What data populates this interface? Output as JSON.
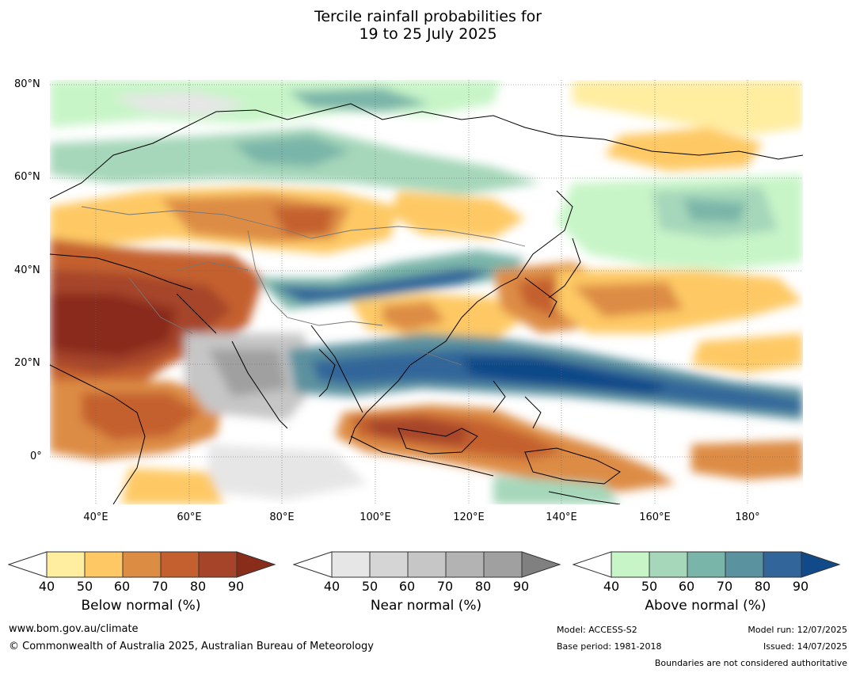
{
  "title": {
    "line1": "Tercile rainfall probabilities for",
    "line2": "19 to 25 July 2025"
  },
  "map": {
    "lat_labels": [
      "80°N",
      "60°N",
      "40°N",
      "20°N",
      "0°"
    ],
    "lon_labels": [
      "40°E",
      "60°E",
      "80°E",
      "100°E",
      "120°E",
      "140°E",
      "160°E",
      "180°"
    ]
  },
  "legends": [
    {
      "name": "below",
      "title": "Below normal (%)",
      "ticks": [
        "40",
        "50",
        "60",
        "70",
        "80",
        "90"
      ],
      "colors": [
        "#ffeda0",
        "#fec965",
        "#dd8c44",
        "#c4602f",
        "#a6442a",
        "#8a2c1a"
      ]
    },
    {
      "name": "near",
      "title": "Near normal (%)",
      "ticks": [
        "40",
        "50",
        "60",
        "70",
        "80",
        "90"
      ],
      "colors": [
        "#e6e6e6",
        "#d5d5d5",
        "#c6c6c6",
        "#b3b3b3",
        "#a0a0a0",
        "#808080"
      ]
    },
    {
      "name": "above",
      "title": "Above normal (%)",
      "ticks": [
        "40",
        "50",
        "60",
        "70",
        "80",
        "90"
      ],
      "colors": [
        "#c8f5c8",
        "#a6d7ba",
        "#7ab5a9",
        "#5b929f",
        "#32669a",
        "#114a88"
      ]
    }
  ],
  "footer": {
    "website": "www.bom.gov.au/climate",
    "copyright": "© Commonwealth of Australia 2025, Australian Bureau of Meteorology",
    "model": "Model: ACCESS-S2",
    "base_period": "Base period: 1981-2018",
    "model_run": "Model run: 12/07/2025",
    "issued": "Issued: 14/07/2025",
    "disclaimer": "Boundaries are not considered authoritative"
  }
}
